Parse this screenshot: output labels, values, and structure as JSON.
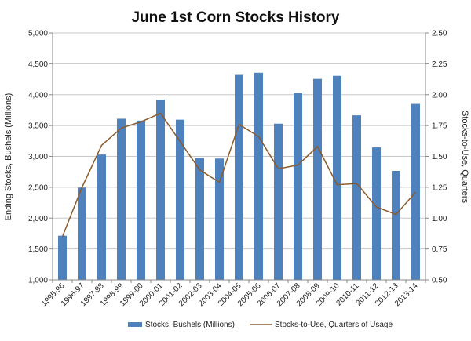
{
  "chart_data": {
    "type": "bar",
    "title": "June 1st Corn Stocks History",
    "categories": [
      "1995-96",
      "1996-97",
      "1997-98",
      "1998-99",
      "1999-00",
      "2000-01",
      "2001-02",
      "2002-03",
      "2003-04",
      "2004-05",
      "2005-06",
      "2006-07",
      "2007-08",
      "2008-09",
      "2009-10",
      "2010-11",
      "2011-12",
      "2012-13",
      "2013-14"
    ],
    "series": [
      {
        "name": "Stocks, Bushels (Millions)",
        "type": "bar",
        "axis": "left",
        "color": "#4F81BD",
        "values": [
          1715,
          2495,
          3030,
          3610,
          3580,
          3920,
          3595,
          2975,
          2965,
          4320,
          4355,
          3530,
          4025,
          4255,
          4305,
          3665,
          3145,
          2765,
          3850
        ]
      },
      {
        "name": "Stocks-to-Use, Quarters of Usage",
        "type": "line",
        "axis": "right",
        "color": "#8B5A2B",
        "values": [
          0.85,
          1.25,
          1.59,
          1.73,
          1.78,
          1.85,
          1.62,
          1.39,
          1.29,
          1.76,
          1.66,
          1.4,
          1.43,
          1.58,
          1.27,
          1.28,
          1.09,
          1.03,
          1.21
        ]
      }
    ],
    "ylabel": "Ending Stocks, Bushels (Millions)",
    "y2label": "Stocks-to-Use, Quarters",
    "ylim": [
      1000,
      5000
    ],
    "y2lim": [
      0.5,
      2.5
    ],
    "yticks": [
      1000,
      1500,
      2000,
      2500,
      3000,
      3500,
      4000,
      4500,
      5000
    ],
    "ytick_labels": [
      "1,000",
      "1,500",
      "2,000",
      "2,500",
      "3,000",
      "3,500",
      "4,000",
      "4,500",
      "5,000"
    ],
    "y2ticks": [
      0.5,
      0.75,
      1.0,
      1.25,
      1.5,
      1.75,
      2.0,
      2.25,
      2.5
    ],
    "y2tick_labels": [
      "0.50",
      "0.75",
      "1.00",
      "1.25",
      "1.50",
      "1.75",
      "2.00",
      "2.25",
      "2.50"
    ],
    "grid": true,
    "legend": "bottom"
  }
}
